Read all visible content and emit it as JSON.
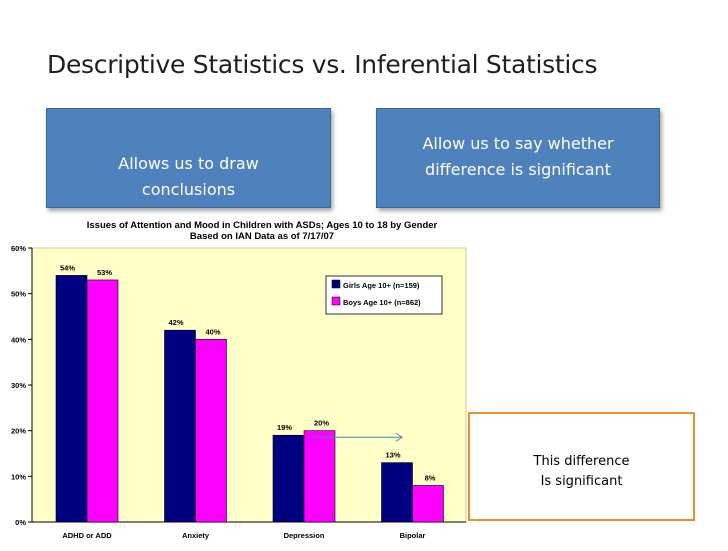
{
  "slide": {
    "title": "Descriptive Statistics vs. Inferential Statistics",
    "left_box": "Allows us to draw conclusions",
    "right_box": "Allow us to say whether difference is significant",
    "callout_line1": "This difference",
    "callout_line2": "Is significant"
  },
  "colors": {
    "box_fill": "#4f81bd",
    "plot_bg": "#ffffc8",
    "girls": "#000080",
    "boys": "#ff00ff",
    "callout_border": "#e8902f",
    "arrow": "#4f81bd"
  },
  "chart_data": {
    "type": "bar",
    "title": "Issues of Attention and Mood in Children with ASDs; Ages 10 to 18 by Gender",
    "subtitle": "Based on IAN Data as of 7/17/07",
    "categories": [
      "ADHD or ADD",
      "Anxiety",
      "Depression",
      "Bipolar"
    ],
    "series": [
      {
        "name": "Girls Age 10+ (n=159)",
        "values": [
          54,
          42,
          19,
          13
        ],
        "labels": [
          "54%",
          "42%",
          "19%",
          "13%"
        ]
      },
      {
        "name": "Boys Age 10+ (n=862)",
        "values": [
          53,
          40,
          20,
          8
        ],
        "labels": [
          "53%",
          "40%",
          "20%",
          "8%"
        ]
      }
    ],
    "ylim": [
      0,
      60
    ],
    "yticks": [
      0,
      10,
      20,
      30,
      40,
      50,
      60
    ],
    "ytick_labels": [
      "0%",
      "10%",
      "20%",
      "30%",
      "40%",
      "50%",
      "60%"
    ],
    "xlabel": "",
    "ylabel": "",
    "grid": false,
    "legend_position": "top-right"
  }
}
